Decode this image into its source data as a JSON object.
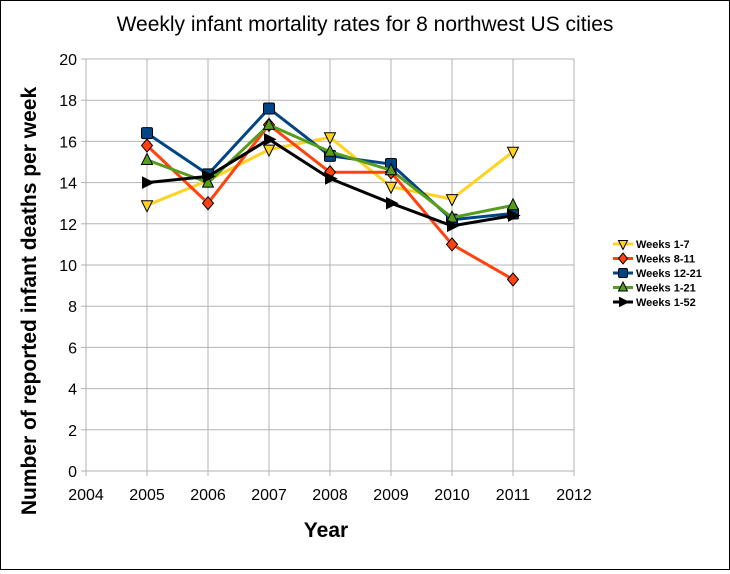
{
  "chart_data": {
    "type": "line",
    "title": "Weekly infant mortality rates for 8 northwest US cities",
    "xlabel": "Year",
    "ylabel": "Number of reported infant deaths per week",
    "xlim": [
      2004,
      2012
    ],
    "ylim": [
      0,
      20
    ],
    "x_ticks": [
      "2004",
      "2005",
      "2006",
      "2007",
      "2008",
      "2009",
      "2010",
      "2011",
      "2012"
    ],
    "y_ticks": [
      "0",
      "2",
      "4",
      "6",
      "8",
      "10",
      "12",
      "14",
      "16",
      "18",
      "20"
    ],
    "grid": true,
    "legend_position": "right",
    "x": [
      2005,
      2006,
      2007,
      2008,
      2009,
      2010,
      2011
    ],
    "series": [
      {
        "name": "Weeks 1-7",
        "color": "#ffd320",
        "marker": "triangle-down",
        "values": [
          12.9,
          14.1,
          15.6,
          16.2,
          13.8,
          13.2,
          15.5
        ]
      },
      {
        "name": "Weeks 8-11",
        "color": "#ff420e",
        "marker": "diamond",
        "values": [
          15.8,
          13.0,
          16.8,
          14.5,
          14.5,
          11.0,
          9.3
        ]
      },
      {
        "name": "Weeks 12-21",
        "color": "#004586",
        "marker": "square",
        "values": [
          16.4,
          14.4,
          17.6,
          15.3,
          14.9,
          12.2,
          12.5
        ]
      },
      {
        "name": "Weeks 1-21",
        "color": "#579d1c",
        "marker": "triangle-up",
        "values": [
          15.1,
          14.0,
          16.8,
          15.5,
          14.6,
          12.3,
          12.9
        ]
      },
      {
        "name": "Weeks 1-52",
        "color": "#000000",
        "marker": "triangle-right",
        "values": [
          14.0,
          14.3,
          16.1,
          14.2,
          13.0,
          11.9,
          12.4
        ]
      }
    ]
  }
}
